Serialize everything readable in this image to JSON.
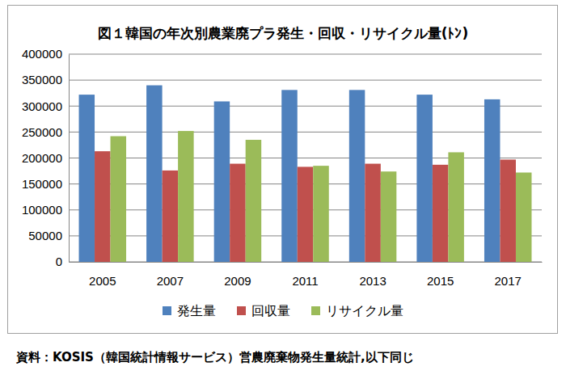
{
  "chart_data": {
    "type": "bar",
    "title": "図１韓国の年次別農業廃プラ発生・回収・リサイクル量(ﾄﾝ)",
    "source": "資料：KOSIS（韓国統計情報サービス）営農廃棄物発生量統計,以下同じ",
    "categories": [
      "2005",
      "2007",
      "2009",
      "2011",
      "2013",
      "2015",
      "2017"
    ],
    "series": [
      {
        "name": "発生量",
        "color": "#4f81bd",
        "values": [
          322000,
          340000,
          309000,
          331000,
          331000,
          322000,
          313000
        ]
      },
      {
        "name": "回収量",
        "color": "#c0504d",
        "values": [
          213000,
          176000,
          189000,
          183000,
          189000,
          187000,
          197000
        ]
      },
      {
        "name": "リサイクル量",
        "color": "#9bbb59",
        "values": [
          242000,
          252000,
          235000,
          185000,
          174000,
          211000,
          172000
        ]
      }
    ],
    "ylim": [
      0,
      400000
    ],
    "yticks": [
      0,
      50000,
      100000,
      150000,
      200000,
      250000,
      300000,
      350000,
      400000
    ],
    "grid": true,
    "legend": "bottom"
  }
}
